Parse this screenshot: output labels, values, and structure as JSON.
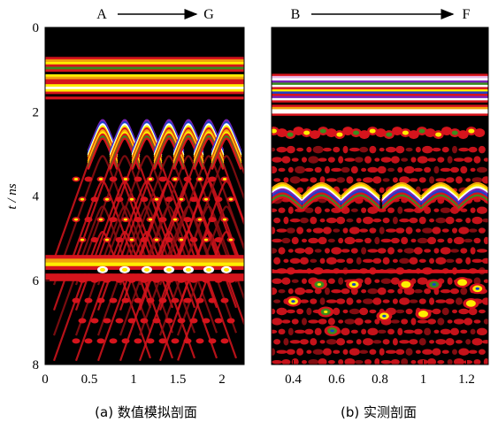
{
  "figure": {
    "panels": [
      {
        "id": "a",
        "caption": "(a) 数值模拟剖面",
        "start_label": "A",
        "end_label": "G",
        "x_ticks": [
          "0",
          "0.5",
          "1",
          "1.5",
          "2"
        ]
      },
      {
        "id": "b",
        "caption": "(b) 实测剖面",
        "start_label": "B",
        "end_label": "F",
        "x_ticks": [
          "0.4",
          "0.6",
          "0.8",
          "1",
          "1.2"
        ]
      }
    ],
    "y_axis_label": "t / ns",
    "y_ticks": [
      "0",
      "2",
      "4",
      "6",
      "8"
    ]
  },
  "chart_data": [
    {
      "type": "heatmap",
      "ylabel": "t / ns",
      "ylim": [
        0,
        8
      ],
      "xlim": [
        0,
        2.25
      ],
      "x_ticks": [
        0,
        0.5,
        1,
        1.5,
        2
      ],
      "y_ticks": [
        0,
        2,
        4,
        6,
        8
      ],
      "direct_wave_bands_t": [
        0.8,
        1.65
      ],
      "hyperbola_apex_x": [
        0.65,
        0.9,
        1.15,
        1.4,
        1.62,
        1.85,
        2.05
      ],
      "hyperbola_apex_t": 2.2,
      "horizontal_reflector_t": 5.75,
      "palette": [
        "#000000",
        "#d6141c",
        "#f2a30c",
        "#ffee00",
        "#3b8c1e",
        "#1c40c8",
        "#7a22b8",
        "#ffffff"
      ]
    },
    {
      "type": "heatmap",
      "ylim": [
        0,
        8
      ],
      "xlim": [
        0.3,
        1.3
      ],
      "x_ticks": [
        0.4,
        0.6,
        0.8,
        1,
        1.2
      ],
      "y_ticks": [
        0,
        2,
        4,
        6,
        8
      ],
      "direct_wave_bands_t": [
        1.1,
        2.15
      ],
      "hyperbola_apex_x": [
        0.35,
        0.53,
        0.71,
        0.9,
        1.08,
        1.25
      ],
      "hyperbola_apex_t": 3.7,
      "palette": [
        "#000000",
        "#d6141c",
        "#f2a30c",
        "#ffee00",
        "#3b8c1e",
        "#1c40c8",
        "#7a22b8",
        "#ffffff"
      ]
    }
  ]
}
